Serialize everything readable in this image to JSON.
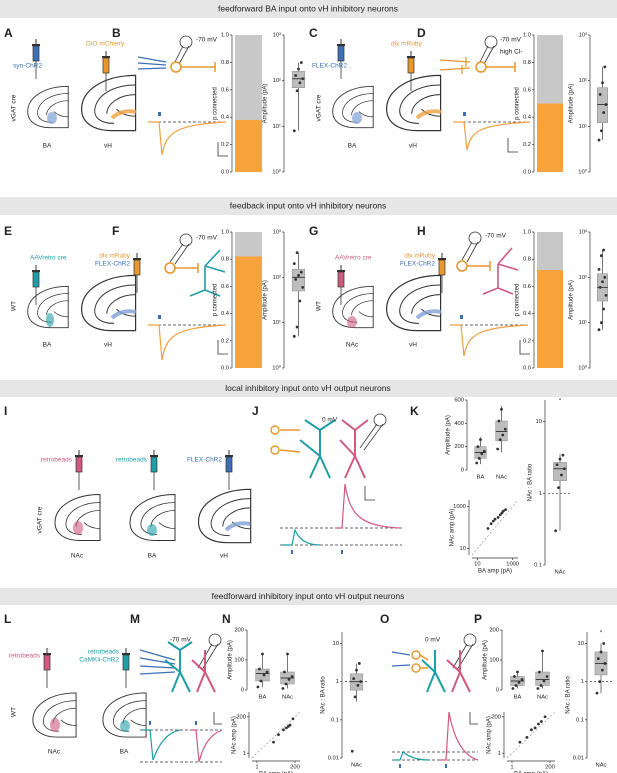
{
  "sections": [
    {
      "title": "feedforward BA input onto vH inhibitory neurons"
    },
    {
      "title": "feedback input onto vH inhibitory neurons"
    },
    {
      "title": "local inhibitory input onto vH output neurons"
    },
    {
      "title": "feedforward inhibitory input onto vH output neurons"
    }
  ],
  "panels": [
    {
      "letter": "A",
      "labels": [
        "syn-ChR2",
        "DIO mCherry",
        "vGAT cre",
        "BA",
        "vH"
      ]
    },
    {
      "letter": "B",
      "labels": [
        "-70 mV"
      ]
    },
    {
      "letter": "C",
      "labels": [
        "FLEX-ChR2",
        "dlx mRuby",
        "vGAT cre",
        "BA",
        "vH"
      ]
    },
    {
      "letter": "D",
      "labels": [
        "-70 mV",
        "high Cl-"
      ]
    },
    {
      "letter": "E",
      "labels": [
        "AAVretro cre",
        "dlx mRuby",
        "FLEX-ChR2",
        "WT",
        "BA",
        "vH"
      ]
    },
    {
      "letter": "F",
      "labels": [
        "-70 mV"
      ]
    },
    {
      "letter": "G",
      "labels": [
        "AAVretro cre",
        "dlx mRuby",
        "FLEX-ChR2",
        "WT",
        "NAc",
        "vH"
      ]
    },
    {
      "letter": "H",
      "labels": [
        "-70 mV"
      ]
    },
    {
      "letter": "I",
      "labels": [
        "retrobeads",
        "retrobeads",
        "FLEX-ChR2",
        "vGAT cre",
        "NAc",
        "BA",
        "vH"
      ]
    },
    {
      "letter": "J",
      "labels": [
        "0 mV"
      ]
    },
    {
      "letter": "K"
    },
    {
      "letter": "L",
      "labels": [
        "retrobeads",
        "retrobeads",
        "CaMKii-ChR2",
        "WT",
        "NAc",
        "BA"
      ]
    },
    {
      "letter": "M",
      "labels": [
        "-70 mV"
      ]
    },
    {
      "letter": "N"
    },
    {
      "letter": "O",
      "labels": [
        "0 mV"
      ]
    },
    {
      "letter": "P"
    }
  ],
  "chart_data": [
    {
      "type": "bar",
      "ylabel": "p connected",
      "ylim": [
        0,
        1
      ],
      "yticks": [
        {
          "value": 0,
          "label": "0.0"
        },
        0.2,
        0.4,
        0.6,
        0.8,
        {
          "value": 1,
          "label": "1.0"
        }
      ],
      "values": [
        0.38
      ],
      "color": "#f5a33a",
      "background": "#c8c8c8"
    },
    {
      "type": "box",
      "ylabel": "Amplitude (pA)",
      "log": true,
      "ylim": [
        1,
        1000
      ],
      "yticks": [
        {
          "value": 1,
          "label": "10⁰"
        },
        {
          "value": 10,
          "label": "10¹"
        },
        {
          "value": 100,
          "label": "10²"
        },
        {
          "value": 1000,
          "label": "10³"
        }
      ],
      "boxes": [
        {
          "whislo": 8,
          "q1": 70,
          "med": 110,
          "q3": 160,
          "whishi": 250,
          "points": [
            8,
            60,
            90,
            110,
            130,
            180,
            250
          ]
        }
      ]
    },
    {
      "type": "bar",
      "ylabel": "p connected",
      "ylim": [
        0,
        1
      ],
      "yticks": [
        {
          "value": 0,
          "label": "0.0"
        },
        0.2,
        0.4,
        0.6,
        0.8,
        {
          "value": 1,
          "label": "1.0"
        }
      ],
      "values": [
        0.5
      ],
      "color": "#f5a33a",
      "background": "#c8c8c8"
    },
    {
      "type": "box",
      "ylabel": "Amplitude (pA)",
      "log": true,
      "ylim": [
        1,
        1000
      ],
      "yticks": [
        {
          "value": 1,
          "label": "10⁰"
        },
        {
          "value": 10,
          "label": "10¹"
        },
        {
          "value": 100,
          "label": "10²"
        },
        {
          "value": 1000,
          "label": "10³"
        }
      ],
      "boxes": [
        {
          "whislo": 5,
          "q1": 12,
          "med": 30,
          "q3": 70,
          "whishi": 200,
          "points": [
            5,
            8,
            20,
            30,
            50,
            90,
            200
          ]
        }
      ]
    },
    {
      "type": "bar",
      "ylabel": "p connected",
      "ylim": [
        0,
        1
      ],
      "yticks": [
        {
          "value": 0,
          "label": "0.0"
        },
        0.2,
        0.4,
        0.6,
        0.8,
        {
          "value": 1,
          "label": "1.0"
        }
      ],
      "values": [
        0.82
      ],
      "color": "#f5a33a",
      "background": "#c8c8c8"
    },
    {
      "type": "box",
      "ylabel": "Amplitude (pA)",
      "log": true,
      "ylim": [
        1,
        1000
      ],
      "yticks": [
        {
          "value": 1,
          "label": "10⁰"
        },
        {
          "value": 10,
          "label": "10¹"
        },
        {
          "value": 100,
          "label": "10²"
        },
        {
          "value": 1000,
          "label": "10³"
        }
      ],
      "boxes": [
        {
          "whislo": 5,
          "q1": 50,
          "med": 100,
          "q3": 150,
          "whishi": 350,
          "points": [
            5,
            8,
            30,
            60,
            90,
            110,
            130,
            200,
            350
          ]
        }
      ]
    },
    {
      "type": "bar",
      "ylabel": "p connected",
      "ylim": [
        0,
        1
      ],
      "yticks": [
        {
          "value": 0,
          "label": "0.0"
        },
        0.2,
        0.4,
        0.6,
        0.8,
        {
          "value": 1,
          "label": "1.0"
        }
      ],
      "values": [
        0.72
      ],
      "color": "#f5a33a",
      "background": "#c8c8c8"
    },
    {
      "type": "box",
      "ylabel": "Amplitude (pA)",
      "log": true,
      "ylim": [
        1,
        1000
      ],
      "yticks": [
        {
          "value": 1,
          "label": "10⁰"
        },
        {
          "value": 10,
          "label": "10¹"
        },
        {
          "value": 100,
          "label": "10²"
        },
        {
          "value": 1000,
          "label": "10³"
        }
      ],
      "boxes": [
        {
          "whislo": 7,
          "q1": 30,
          "med": 60,
          "q3": 120,
          "whishi": 400,
          "points": [
            7,
            10,
            20,
            40,
            60,
            80,
            100,
            150,
            300,
            400
          ]
        }
      ]
    },
    {
      "type": "box",
      "ylabel": "Amplitude (pA)",
      "ylim": [
        0,
        600
      ],
      "yticks": [
        0,
        200,
        400,
        600
      ],
      "categories": [
        "BA",
        "NAc"
      ],
      "boxes": [
        {
          "whislo": 50,
          "q1": 100,
          "med": 150,
          "q3": 200,
          "whishi": 280,
          "points": [
            60,
            100,
            140,
            160,
            200,
            260
          ]
        },
        {
          "whislo": 150,
          "q1": 250,
          "med": 330,
          "q3": 420,
          "whishi": 550,
          "points": [
            180,
            260,
            300,
            350,
            420,
            520
          ]
        }
      ]
    },
    {
      "type": "scatter",
      "xlabel": "BA amp (pA)",
      "ylabel": "NAc amp (pA)",
      "log": true,
      "xlog": true,
      "xlim": [
        5,
        2000
      ],
      "ylim": [
        5,
        2000
      ],
      "xticks": [
        10,
        1000
      ],
      "yticks": [
        10,
        1000
      ],
      "x": [
        40,
        60,
        80,
        100,
        150,
        200,
        250,
        300,
        400
      ],
      "y": [
        90,
        150,
        200,
        250,
        300,
        400,
        500,
        600,
        700
      ]
    },
    {
      "type": "box",
      "ylabel": "NAc : BA ratio",
      "log": true,
      "ylim": [
        0.1,
        20
      ],
      "yticks": [
        0.1,
        1,
        10
      ],
      "categories": [
        "NAc"
      ],
      "reference_line": 1,
      "annotation": "*",
      "boxes": [
        {
          "whislo": 0.3,
          "q1": 1.5,
          "med": 2.2,
          "q3": 2.7,
          "whishi": 3.5,
          "points": [
            0.3,
            1.2,
            1.8,
            2.2,
            2.5,
            3,
            3.4
          ]
        }
      ]
    },
    {
      "type": "box",
      "ylabel": "Amplitude (pA)",
      "ylim": [
        0,
        200
      ],
      "yticks": [
        0,
        100,
        200
      ],
      "categories": [
        "BA",
        "NAc"
      ],
      "boxes": [
        {
          "whislo": 10,
          "q1": 30,
          "med": 55,
          "q3": 70,
          "whishi": 120,
          "points": [
            10,
            30,
            50,
            60,
            70,
            120
          ]
        },
        {
          "whislo": 5,
          "q1": 20,
          "med": 40,
          "q3": 60,
          "whishi": 120,
          "points": [
            5,
            20,
            35,
            45,
            60,
            120
          ]
        }
      ]
    },
    {
      "type": "scatter",
      "xlabel": "BA amp (pA)",
      "ylabel": "NAc amp (pA)",
      "log": true,
      "xlog": true,
      "xlim": [
        0.5,
        400
      ],
      "ylim": [
        0.5,
        400
      ],
      "xticks": [
        1,
        200
      ],
      "yticks": [
        1,
        200
      ],
      "x": [
        10,
        20,
        40,
        60,
        80,
        100,
        150
      ],
      "y": [
        5,
        15,
        30,
        40,
        50,
        60,
        150
      ]
    },
    {
      "type": "box",
      "ylabel": "NAc : BA ratio",
      "log": true,
      "ylim": [
        0.01,
        20
      ],
      "yticks": [
        0.01,
        0.1,
        1,
        10
      ],
      "categories": [
        "NAc"
      ],
      "reference_line": 1,
      "boxes": [
        {
          "whislo": 0.3,
          "q1": 0.6,
          "med": 1,
          "q3": 1.6,
          "whishi": 3,
          "points": [
            0.015,
            0.4,
            0.8,
            1,
            1.2,
            2,
            3
          ]
        }
      ]
    },
    {
      "type": "box",
      "ylabel": "Amplitude (pA)",
      "ylim": [
        0,
        200
      ],
      "yticks": [
        0,
        100,
        200
      ],
      "categories": [
        "BA",
        "NAc"
      ],
      "boxes": [
        {
          "whislo": 5,
          "q1": 15,
          "med": 30,
          "q3": 45,
          "whishi": 60,
          "points": [
            5,
            15,
            25,
            35,
            45,
            60
          ]
        },
        {
          "whislo": 5,
          "q1": 15,
          "med": 35,
          "q3": 60,
          "whishi": 130,
          "points": [
            5,
            15,
            30,
            45,
            60,
            130
          ]
        }
      ]
    },
    {
      "type": "scatter",
      "xlabel": "BA amp (pA)",
      "ylabel": "NAc amp (pA)",
      "log": true,
      "xlog": true,
      "xlim": [
        0.5,
        400
      ],
      "ylim": [
        0.5,
        400
      ],
      "xticks": [
        1,
        200
      ],
      "yticks": [
        1,
        200
      ],
      "x": [
        3,
        8,
        15,
        25,
        40,
        60,
        100
      ],
      "y": [
        5,
        10,
        30,
        40,
        70,
        100,
        200
      ]
    },
    {
      "type": "box",
      "ylabel": "NAc : BA ratio",
      "log": true,
      "ylim": [
        0.01,
        20
      ],
      "yticks": [
        0.01,
        0.1,
        1,
        10
      ],
      "categories": [
        "NAc"
      ],
      "reference_line": 1,
      "annotation": "*",
      "boxes": [
        {
          "whislo": 0.5,
          "q1": 1.5,
          "med": 3,
          "q3": 6,
          "whishi": 10,
          "points": [
            0.5,
            1,
            2,
            3,
            4,
            6,
            10
          ]
        }
      ]
    }
  ]
}
